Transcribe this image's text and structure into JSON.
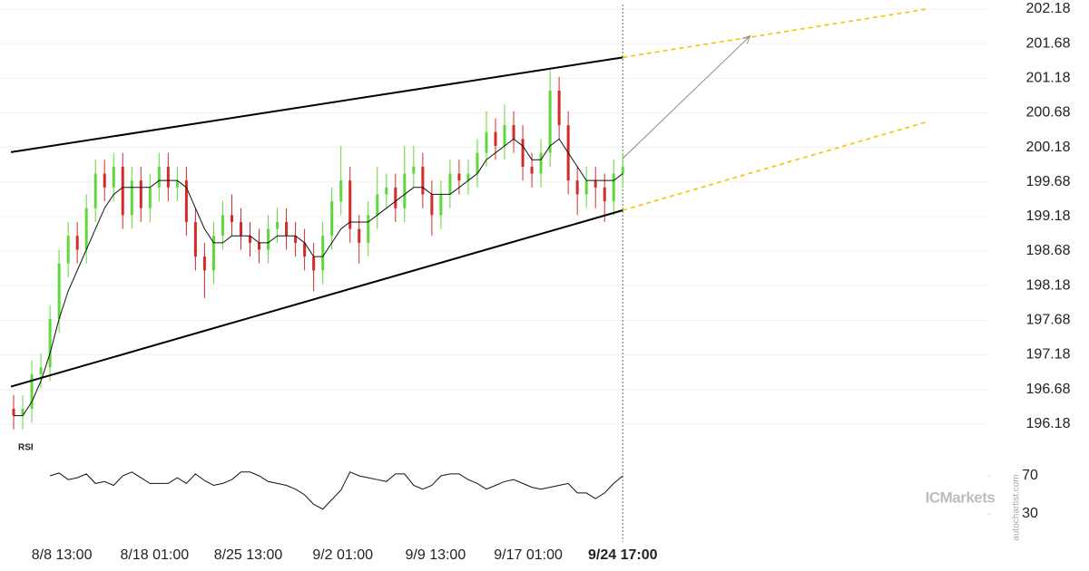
{
  "chart_data": [
    {
      "type": "candlestick",
      "x": [
        0,
        1,
        2,
        3,
        4,
        5,
        6,
        7,
        8,
        9,
        10,
        11,
        12,
        13,
        14,
        15,
        16,
        17,
        18,
        19,
        20,
        21,
        22,
        23,
        24,
        25,
        26,
        27,
        28,
        29,
        30,
        31,
        32,
        33,
        34,
        35,
        36,
        37,
        38,
        39,
        40,
        41,
        42,
        43,
        44,
        45,
        46,
        47,
        48,
        49,
        50,
        51,
        52,
        53,
        54,
        55,
        56,
        57,
        58,
        59,
        60,
        61,
        62,
        63,
        64,
        65,
        66,
        67
      ],
      "open": [
        196.4,
        196.3,
        196.4,
        196.9,
        197.0,
        197.7,
        198.5,
        198.9,
        198.7,
        199.3,
        199.8,
        199.6,
        199.9,
        199.2,
        199.7,
        199.3,
        199.6,
        199.9,
        199.6,
        199.7,
        199.1,
        198.6,
        198.4,
        198.9,
        199.2,
        199.1,
        198.9,
        198.8,
        198.7,
        199.0,
        199.1,
        198.9,
        198.8,
        198.6,
        198.4,
        198.9,
        199.4,
        199.7,
        199.0,
        198.8,
        199.2,
        199.5,
        199.6,
        199.3,
        199.8,
        199.9,
        199.5,
        199.2,
        199.5,
        199.8,
        199.7,
        199.8,
        200.1,
        200.4,
        200.2,
        200.5,
        200.3,
        199.9,
        199.8,
        200.1,
        201.0,
        200.5,
        199.7,
        199.5,
        199.7,
        199.6,
        199.4,
        199.8
      ],
      "high": [
        196.6,
        196.6,
        197.1,
        197.2,
        197.9,
        198.7,
        199.1,
        199.1,
        199.5,
        200.0,
        200.0,
        200.1,
        200.1,
        199.9,
        199.9,
        199.8,
        200.1,
        200.1,
        199.9,
        199.9,
        199.3,
        198.8,
        199.1,
        199.4,
        199.5,
        199.3,
        199.1,
        199.0,
        199.2,
        199.3,
        199.3,
        199.1,
        199.0,
        198.8,
        199.1,
        199.6,
        200.2,
        199.9,
        199.2,
        199.4,
        199.9,
        199.8,
        199.8,
        200.2,
        200.2,
        200.1,
        199.7,
        199.7,
        200.0,
        200.0,
        200.0,
        200.3,
        200.7,
        200.6,
        200.8,
        200.7,
        200.5,
        200.1,
        200.3,
        201.3,
        201.2,
        200.7,
        199.9,
        199.9,
        199.9,
        199.8,
        200.0,
        200.1
      ],
      "low": [
        196.1,
        196.1,
        196.2,
        196.7,
        196.8,
        197.5,
        198.3,
        198.5,
        198.5,
        199.1,
        199.4,
        199.4,
        199.0,
        199.0,
        199.1,
        199.1,
        199.4,
        199.4,
        199.4,
        198.9,
        198.4,
        198.0,
        198.2,
        198.7,
        198.9,
        198.7,
        198.6,
        198.5,
        198.5,
        198.8,
        198.7,
        198.6,
        198.4,
        198.1,
        198.2,
        198.7,
        199.2,
        198.8,
        198.5,
        198.6,
        199.0,
        199.3,
        199.1,
        199.1,
        199.6,
        199.3,
        198.9,
        199.0,
        199.3,
        199.5,
        199.5,
        199.6,
        199.9,
        200.0,
        200.0,
        200.1,
        199.7,
        199.6,
        199.6,
        199.9,
        200.3,
        199.5,
        199.2,
        199.3,
        199.3,
        199.1,
        199.2,
        199.6
      ],
      "close": [
        196.3,
        196.4,
        196.9,
        197.0,
        197.7,
        198.5,
        198.9,
        198.7,
        199.3,
        199.8,
        199.6,
        199.9,
        199.2,
        199.7,
        199.3,
        199.6,
        199.9,
        199.6,
        199.7,
        199.1,
        198.6,
        198.4,
        198.9,
        199.2,
        199.1,
        198.9,
        198.8,
        198.7,
        199.0,
        199.1,
        198.9,
        198.8,
        198.6,
        198.4,
        198.9,
        199.4,
        199.7,
        199.0,
        198.8,
        199.2,
        199.5,
        199.6,
        199.3,
        199.8,
        199.9,
        199.5,
        199.2,
        199.5,
        199.8,
        199.7,
        199.8,
        200.1,
        200.4,
        200.2,
        200.5,
        200.3,
        199.9,
        199.8,
        200.1,
        201.0,
        200.5,
        199.7,
        199.5,
        199.7,
        199.6,
        199.4,
        199.8,
        199.9
      ],
      "up_color": "#5fd83a",
      "down_color": "#d42a2a",
      "moving_average": {
        "color": "#111111",
        "values": [
          196.3,
          196.3,
          196.5,
          196.8,
          197.2,
          197.7,
          198.1,
          198.4,
          198.7,
          199.0,
          199.3,
          199.5,
          199.6,
          199.6,
          199.6,
          199.6,
          199.7,
          199.7,
          199.7,
          199.6,
          199.3,
          199.0,
          198.8,
          198.8,
          198.9,
          198.9,
          198.9,
          198.8,
          198.8,
          198.9,
          198.9,
          198.9,
          198.8,
          198.6,
          198.6,
          198.8,
          199.0,
          199.1,
          199.1,
          199.1,
          199.2,
          199.3,
          199.4,
          199.5,
          199.6,
          199.6,
          199.5,
          199.5,
          199.5,
          199.6,
          199.7,
          199.8,
          200.0,
          200.1,
          200.2,
          200.3,
          200.2,
          200.0,
          200.0,
          200.2,
          200.3,
          200.1,
          199.9,
          199.7,
          199.7,
          199.7,
          199.7,
          199.8
        ]
      },
      "trendlines": [
        {
          "x": [
            -0.3,
            67
          ],
          "y": [
            200.11,
            201.48
          ],
          "color": "#000000",
          "style": "solid"
        },
        {
          "x": [
            -0.3,
            67
          ],
          "y": [
            196.72,
            199.27
          ],
          "color": "#000000",
          "style": "solid"
        },
        {
          "x": [
            67,
            100.5
          ],
          "y": [
            201.48,
            202.18
          ],
          "color": "#f5c400",
          "style": "dashed"
        },
        {
          "x": [
            67,
            100.5
          ],
          "y": [
            199.27,
            200.55
          ],
          "color": "#f5c400",
          "style": "dashed"
        }
      ],
      "arrow": {
        "x": [
          67,
          81
        ],
        "y": [
          200.02,
          201.79
        ],
        "color": "#8a8a8a"
      },
      "xlim": [
        -1.5,
        107.3
      ],
      "ylim": [
        196.02,
        202.31
      ],
      "yticks": [
        196.18,
        196.68,
        197.18,
        197.68,
        198.18,
        198.68,
        199.18,
        199.68,
        200.18,
        200.68,
        201.18,
        201.68,
        202.18
      ],
      "xticks": [
        {
          "value": 5.3,
          "label": "8/8 13:00"
        },
        {
          "value": 15.5,
          "label": "8/18 01:00"
        },
        {
          "value": 25.8,
          "label": "8/25 13:00"
        },
        {
          "value": 36.2,
          "label": "9/2 01:00"
        },
        {
          "value": 46.4,
          "label": "9/9 13:00"
        },
        {
          "value": 56.6,
          "label": "9/17 01:00"
        },
        {
          "value": 67,
          "label": "9/24 17:00",
          "bold": true
        }
      ],
      "grid": true,
      "watermark": "ICMarkets",
      "credit": "autochartist.com"
    },
    {
      "type": "line",
      "title": "RSI",
      "x": [
        0,
        1,
        2,
        3,
        4,
        5,
        6,
        7,
        8,
        9,
        10,
        11,
        12,
        13,
        14,
        15,
        16,
        17,
        18,
        19,
        20,
        21,
        22,
        23,
        24,
        25,
        26,
        27,
        28,
        29,
        30,
        31,
        32,
        33,
        34,
        35,
        36,
        37,
        38,
        39,
        40,
        41,
        42,
        43,
        44,
        45,
        46,
        47,
        48,
        49,
        50,
        51,
        52,
        53,
        54,
        55,
        56,
        57,
        58,
        59,
        60,
        61,
        62,
        63,
        64,
        65,
        66,
        67
      ],
      "series": [
        {
          "color": "#111111",
          "values": [
            null,
            null,
            null,
            null,
            70,
            73,
            66,
            68,
            72,
            62,
            64,
            60,
            70,
            74,
            68,
            62,
            62,
            62,
            68,
            62,
            72,
            65,
            60,
            62,
            66,
            74,
            74,
            70,
            64,
            62,
            60,
            56,
            50,
            40,
            35,
            45,
            55,
            74,
            70,
            68,
            66,
            64,
            72,
            72,
            60,
            56,
            60,
            70,
            72,
            72,
            66,
            62,
            56,
            60,
            64,
            66,
            62,
            58,
            56,
            58,
            60,
            62,
            52,
            52,
            46,
            52,
            62,
            70
          ]
        }
      ],
      "xlim": [
        -1.5,
        107.3
      ],
      "ylim": [
        8.1,
        93.8
      ],
      "yticks": [
        30,
        70
      ]
    }
  ]
}
